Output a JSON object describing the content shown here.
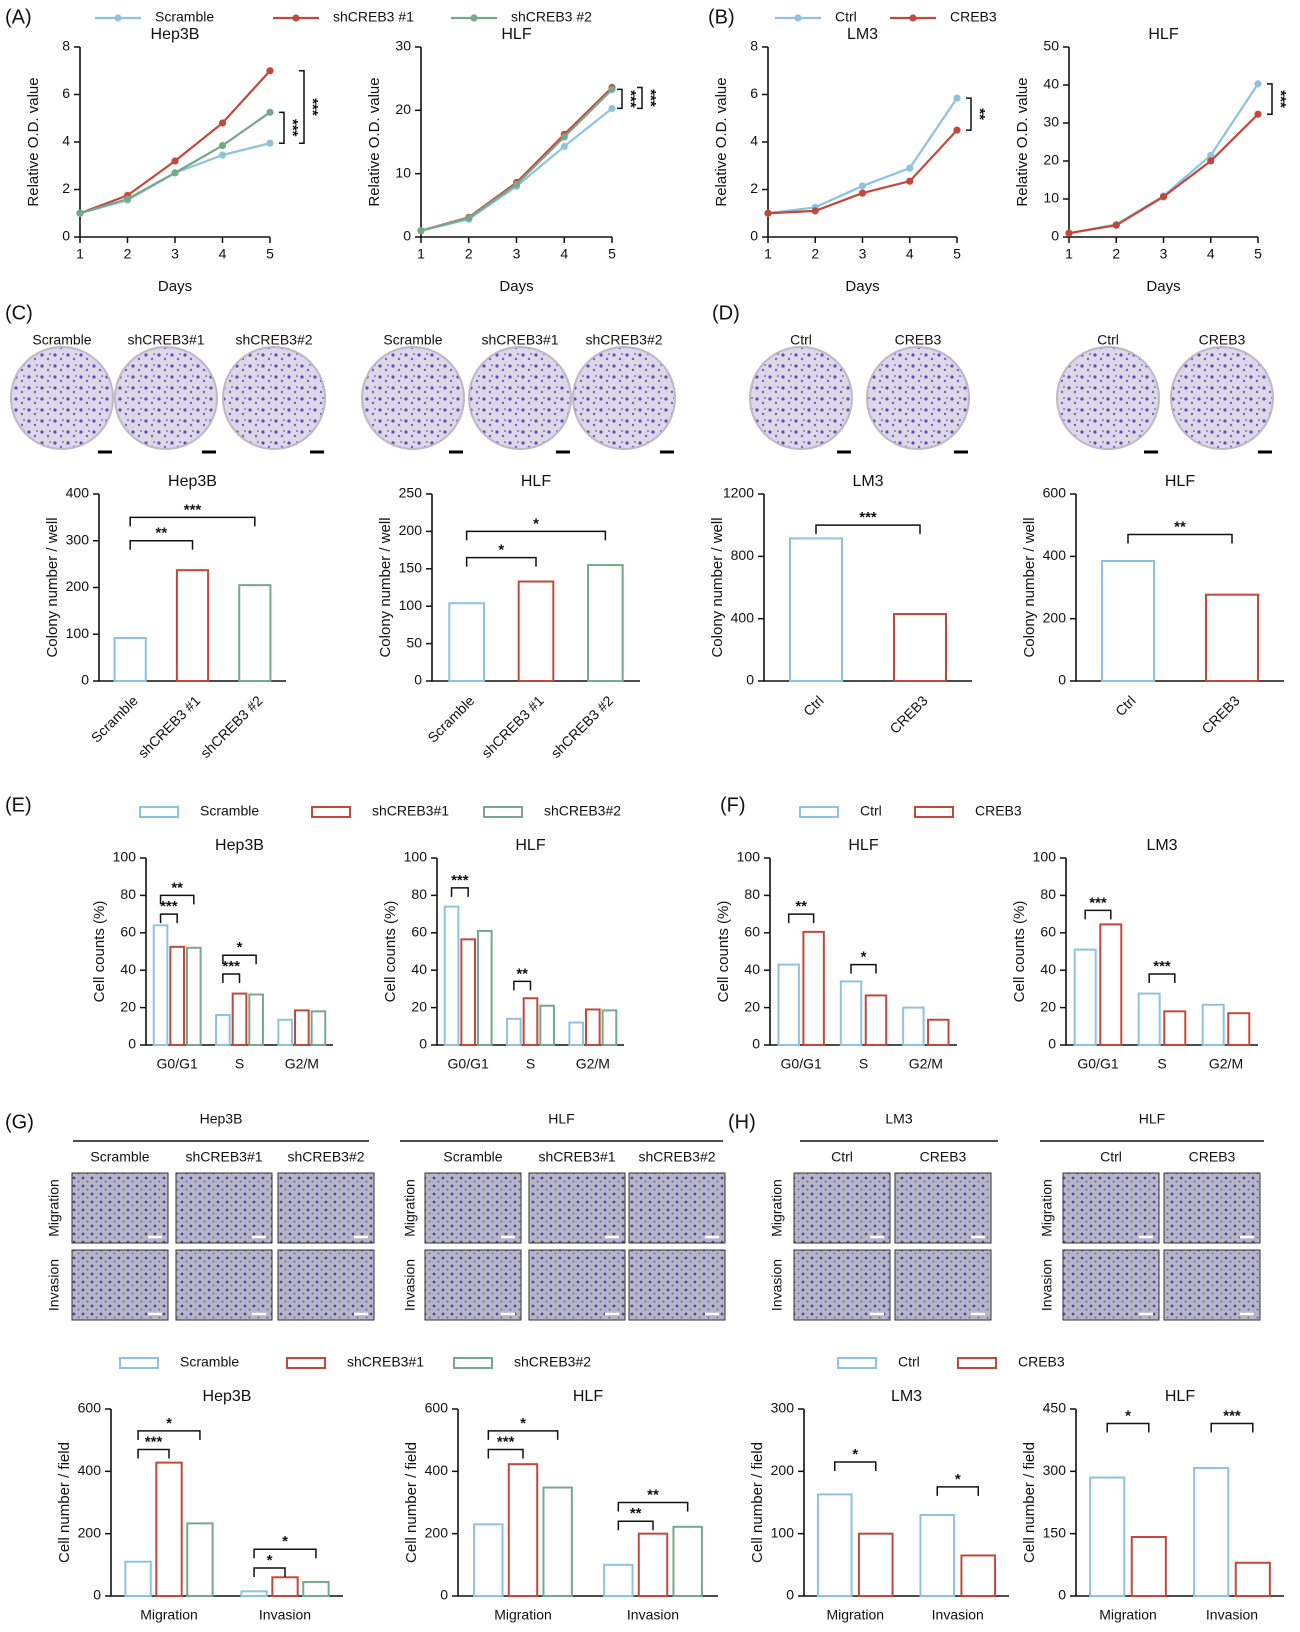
{
  "panel_labels": [
    "(A)",
    "(B)",
    "(C)",
    "(D)",
    "(E)",
    "(F)",
    "(G)",
    "(H)"
  ],
  "photo_groups": [
    {
      "labels": [
        "Scramble",
        "shCREB3#1",
        "shCREB3#2"
      ]
    },
    {
      "labels": [
        "Scramble",
        "shCREB3#1",
        "shCREB3#2"
      ]
    },
    {
      "labels": [
        "Ctrl",
        "CREB3"
      ]
    },
    {
      "labels": [
        "Ctrl",
        "CREB3"
      ]
    },
    {
      "title": "Hep3B",
      "labels": [
        "Scramble",
        "shCREB3#1",
        "shCREB3#2"
      ],
      "rows": [
        "Migration",
        "Invasion"
      ]
    },
    {
      "title": "HLF",
      "labels": [
        "Scramble",
        "shCREB3#1",
        "shCREB3#2"
      ],
      "rows": [
        "Migration",
        "Invasion"
      ]
    },
    {
      "title": "LM3",
      "labels": [
        "Ctrl",
        "CREB3"
      ],
      "rows": [
        "Migration",
        "Invasion"
      ]
    },
    {
      "title": "HLF",
      "labels": [
        "Ctrl",
        "CREB3"
      ],
      "rows": [
        "Migration",
        "Invasion"
      ]
    }
  ],
  "chart_data": [
    {
      "type": "line",
      "title": "Hep3B",
      "xlabel": "Days",
      "ylabel": "Relative O.D. value",
      "x": [
        1,
        2,
        3,
        4,
        5
      ],
      "xlim": [
        1,
        5
      ],
      "xticks": [
        1,
        2,
        3,
        4,
        5
      ],
      "ylim": [
        0,
        8
      ],
      "yticks": [
        0,
        2,
        4,
        6,
        8
      ],
      "series": [
        {
          "name": "Scramble",
          "color": "#8dc3e0",
          "values": [
            1,
            1.55,
            2.7,
            3.45,
            3.95
          ]
        },
        {
          "name": "shCREB3 #1",
          "color": "#c2483c",
          "values": [
            1,
            1.75,
            3.2,
            4.8,
            7.0
          ]
        },
        {
          "name": "shCREB3 #2",
          "color": "#76a98a",
          "values": [
            1,
            1.6,
            2.7,
            3.85,
            5.25
          ]
        }
      ],
      "annotations": [
        "***",
        "***"
      ]
    },
    {
      "type": "line",
      "title": "HLF",
      "xlabel": "Days",
      "ylabel": "Relative O.D. value",
      "x": [
        1,
        2,
        3,
        4,
        5
      ],
      "xlim": [
        1,
        5
      ],
      "xticks": [
        1,
        2,
        3,
        4,
        5
      ],
      "ylim": [
        0,
        30
      ],
      "yticks": [
        0,
        10,
        20,
        30
      ],
      "series": [
        {
          "color": "#8dc3e0",
          "values": [
            1,
            2.8,
            8,
            14.3,
            20.3
          ]
        },
        {
          "color": "#c2483c",
          "values": [
            1,
            3.1,
            8.6,
            16.2,
            23.6
          ]
        },
        {
          "color": "#76a98a",
          "values": [
            1,
            3,
            8.3,
            15.8,
            23.3
          ]
        }
      ],
      "annotations": [
        "***",
        "***"
      ]
    },
    {
      "type": "line",
      "title": "LM3",
      "xlabel": "Days",
      "ylabel": "Relative O.D. value",
      "x": [
        1,
        2,
        3,
        4,
        5
      ],
      "xlim": [
        1,
        5
      ],
      "xticks": [
        1,
        2,
        3,
        4,
        5
      ],
      "ylim": [
        0,
        8
      ],
      "yticks": [
        0,
        2,
        4,
        6,
        8
      ],
      "series": [
        {
          "name": "Ctrl",
          "color": "#8dc3e0",
          "values": [
            1,
            1.25,
            2.15,
            2.9,
            5.85
          ]
        },
        {
          "name": "CREB3",
          "color": "#c2483c",
          "values": [
            1,
            1.1,
            1.85,
            2.35,
            4.5
          ]
        }
      ],
      "annotations": [
        "**"
      ]
    },
    {
      "type": "line",
      "title": "HLF",
      "xlabel": "Days",
      "ylabel": "Relative O.D. value",
      "x": [
        1,
        2,
        3,
        4,
        5
      ],
      "xlim": [
        1,
        5
      ],
      "xticks": [
        1,
        2,
        3,
        4,
        5
      ],
      "ylim": [
        0,
        50
      ],
      "yticks": [
        0,
        10,
        20,
        30,
        40,
        50
      ],
      "series": [
        {
          "color": "#8dc3e0",
          "values": [
            1,
            3.3,
            10.8,
            21.5,
            40.3
          ]
        },
        {
          "color": "#c2483c",
          "values": [
            1,
            3.1,
            10.6,
            20,
            32.3
          ]
        }
      ],
      "annotations": [
        "***"
      ]
    },
    {
      "type": "bar",
      "title": "Hep3B",
      "ylabel": "Colony  number / well",
      "categories": [
        "Scramble",
        "shCREB3 #1",
        "shCREB3 #2"
      ],
      "values": [
        92,
        237,
        205
      ],
      "colors": [
        "#8dc3e0",
        "#c2483c",
        "#76a98a"
      ],
      "ylim": [
        0,
        400
      ],
      "yticks": [
        0,
        100,
        200,
        300,
        400
      ],
      "annotations": [
        "**",
        "***"
      ]
    },
    {
      "type": "bar",
      "title": "HLF",
      "ylabel": "Colony number / well",
      "categories": [
        "Scramble",
        "shCREB3 #1",
        "shCREB3 #2"
      ],
      "values": [
        104,
        133,
        155
      ],
      "colors": [
        "#8dc3e0",
        "#c2483c",
        "#76a98a"
      ],
      "ylim": [
        0,
        250
      ],
      "yticks": [
        0,
        50,
        100,
        150,
        200,
        250
      ],
      "annotations": [
        "*",
        "*"
      ]
    },
    {
      "type": "bar",
      "title": "LM3",
      "ylabel": "Colony number / well",
      "categories": [
        "Ctrl",
        "CREB3"
      ],
      "values": [
        915,
        430
      ],
      "colors": [
        "#8dc3e0",
        "#c2483c"
      ],
      "ylim": [
        0,
        1200
      ],
      "yticks": [
        0,
        400,
        800,
        1200
      ],
      "annotations": [
        "***"
      ]
    },
    {
      "type": "bar",
      "title": "HLF",
      "ylabel": "Colony  number / well",
      "categories": [
        "Ctrl",
        "CREB3"
      ],
      "values": [
        385,
        277
      ],
      "colors": [
        "#8dc3e0",
        "#c2483c"
      ],
      "ylim": [
        0,
        600
      ],
      "yticks": [
        0,
        200,
        400,
        600
      ],
      "annotations": [
        "**"
      ]
    },
    {
      "type": "grouped_bar",
      "title": "Hep3B",
      "ylabel": "Cell counts (%)",
      "categories": [
        "G0/G1",
        "S",
        "G2/M"
      ],
      "ylim": [
        0,
        100
      ],
      "yticks": [
        0,
        20,
        40,
        60,
        80,
        100
      ],
      "series": [
        {
          "name": "Scramble",
          "color": "#8dc3e0",
          "values": [
            64,
            16,
            13.5
          ]
        },
        {
          "name": "shCREB3#1",
          "color": "#c2483c",
          "values": [
            52.5,
            27.5,
            18.5
          ]
        },
        {
          "name": "shCREB3#2",
          "color": "#76a98a",
          "values": [
            52,
            27,
            18
          ]
        }
      ],
      "annotations": [
        "**",
        "***",
        "*",
        "***"
      ]
    },
    {
      "type": "grouped_bar",
      "title": "HLF",
      "ylabel": "Cell counts (%)",
      "categories": [
        "G0/G1",
        "S",
        "G2/M"
      ],
      "ylim": [
        0,
        100
      ],
      "yticks": [
        0,
        20,
        40,
        60,
        80,
        100
      ],
      "series": [
        {
          "color": "#8dc3e0",
          "values": [
            74,
            14,
            12
          ]
        },
        {
          "color": "#c2483c",
          "values": [
            56.5,
            25,
            19
          ]
        },
        {
          "color": "#76a98a",
          "values": [
            61,
            21,
            18.5
          ]
        }
      ],
      "annotations": [
        "***",
        "**"
      ]
    },
    {
      "type": "grouped_bar",
      "title": "HLF",
      "ylabel": "Cell counts (%)",
      "categories": [
        "G0/G1",
        "S",
        "G2/M"
      ],
      "ylim": [
        0,
        100
      ],
      "yticks": [
        0,
        20,
        40,
        60,
        80,
        100
      ],
      "series": [
        {
          "name": "Ctrl",
          "color": "#8dc3e0",
          "values": [
            43,
            34,
            20
          ]
        },
        {
          "name": "CREB3",
          "color": "#c2483c",
          "values": [
            60.5,
            26.5,
            13.5
          ]
        }
      ],
      "annotations": [
        "**",
        "*"
      ]
    },
    {
      "type": "grouped_bar",
      "title": "LM3",
      "ylabel": "Cell counts (%)",
      "categories": [
        "G0/G1",
        "S",
        "G2/M"
      ],
      "ylim": [
        0,
        100
      ],
      "yticks": [
        0,
        20,
        40,
        60,
        80,
        100
      ],
      "series": [
        {
          "color": "#8dc3e0",
          "values": [
            51,
            27.5,
            21.5
          ]
        },
        {
          "color": "#c2483c",
          "values": [
            64.5,
            18,
            17
          ]
        }
      ],
      "annotations": [
        "***",
        "***"
      ]
    },
    {
      "type": "grouped_bar",
      "title": "Hep3B",
      "ylabel": "Cell number / field",
      "categories": [
        "Migration",
        "Invasion"
      ],
      "ylim": [
        0,
        600
      ],
      "yticks": [
        0,
        200,
        400,
        600
      ],
      "series": [
        {
          "name": "Scramble",
          "color": "#8dc3e0",
          "values": [
            110,
            15
          ]
        },
        {
          "name": "shCREB3#1",
          "color": "#c2483c",
          "values": [
            428,
            60
          ]
        },
        {
          "name": "shCREB3#2",
          "color": "#76a98a",
          "values": [
            233,
            45
          ]
        }
      ],
      "annotations": [
        "*",
        "***",
        "*",
        "*"
      ]
    },
    {
      "type": "grouped_bar",
      "title": "HLF",
      "ylabel": "Cell number / field",
      "categories": [
        "Migration",
        "Invasion"
      ],
      "ylim": [
        0,
        600
      ],
      "yticks": [
        0,
        200,
        400,
        600
      ],
      "series": [
        {
          "color": "#8dc3e0",
          "values": [
            230,
            100
          ]
        },
        {
          "color": "#c2483c",
          "values": [
            423,
            200
          ]
        },
        {
          "color": "#76a98a",
          "values": [
            348,
            222
          ]
        }
      ],
      "annotations": [
        "*",
        "***",
        "**",
        "**"
      ]
    },
    {
      "type": "grouped_bar",
      "title": "LM3",
      "ylabel": "Cell number / field",
      "categories": [
        "Migration",
        "Invasion"
      ],
      "ylim": [
        0,
        300
      ],
      "yticks": [
        0,
        100,
        200,
        300
      ],
      "series": [
        {
          "name": "Ctrl",
          "color": "#8dc3e0",
          "values": [
            163,
            130
          ]
        },
        {
          "name": "CREB3",
          "color": "#c2483c",
          "values": [
            100,
            65
          ]
        }
      ],
      "annotations": [
        "*",
        "*"
      ]
    },
    {
      "type": "grouped_bar",
      "title": "HLF",
      "ylabel": "Cell number / field",
      "categories": [
        "Migration",
        "Invasion"
      ],
      "ylim": [
        0,
        450
      ],
      "yticks": [
        0,
        150,
        300,
        450
      ],
      "series": [
        {
          "color": "#8dc3e0",
          "values": [
            285,
            308
          ]
        },
        {
          "color": "#c2483c",
          "values": [
            142,
            80
          ]
        }
      ],
      "annotations": [
        "*",
        "***"
      ]
    }
  ]
}
